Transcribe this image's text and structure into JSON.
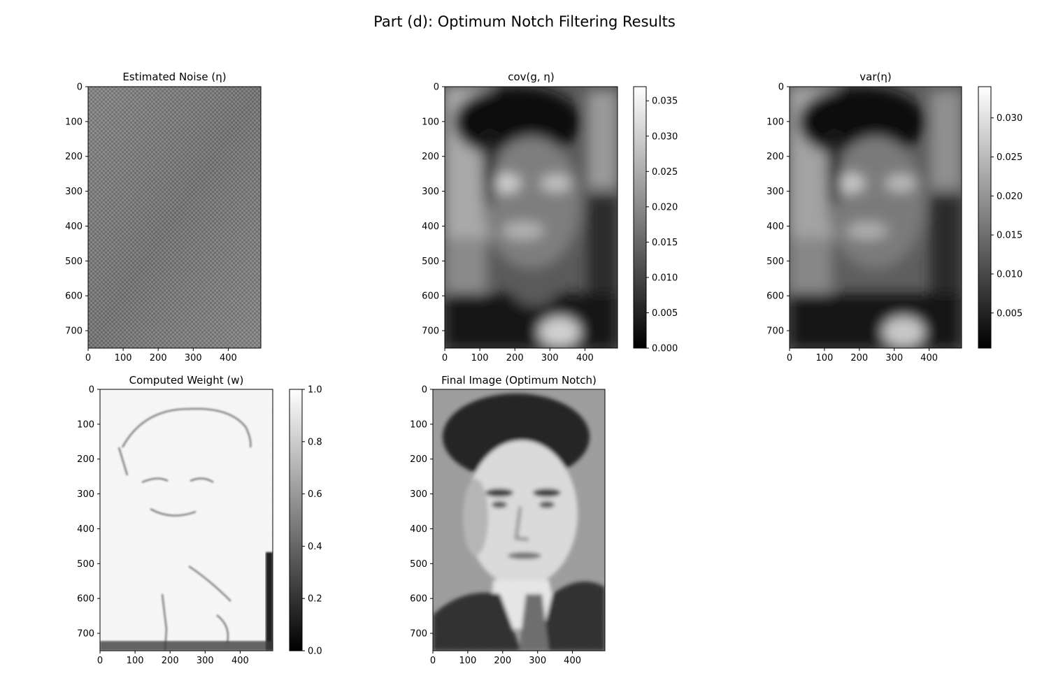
{
  "figure": {
    "suptitle": "Part (d): Optimum Notch Filtering Results"
  },
  "chart_data": [
    {
      "type": "heatmap",
      "id": "noise",
      "title": "Estimated Noise (η)",
      "colormap": "gray",
      "image_shape": [
        750,
        493
      ],
      "xlim": [
        0,
        493
      ],
      "ylim": [
        750,
        0
      ],
      "xticks": [
        0,
        100,
        200,
        300,
        400
      ],
      "yticks": [
        0,
        100,
        200,
        300,
        400,
        500,
        600,
        700
      ],
      "content": "fine periodic checkerboard noise pattern, mid-gray",
      "colorbar": null
    },
    {
      "type": "heatmap",
      "id": "cov",
      "title": "cov(g, η)",
      "colormap": "gray",
      "image_shape": [
        750,
        493
      ],
      "xlim": [
        0,
        493
      ],
      "ylim": [
        750,
        0
      ],
      "xticks": [
        0,
        100,
        200,
        300,
        400
      ],
      "yticks": [
        0,
        100,
        200,
        300,
        400,
        500,
        600,
        700
      ],
      "content": "blurred local covariance map of portrait",
      "colorbar": {
        "range": [
          0.0,
          0.037
        ],
        "ticks": [
          "0.000",
          "0.005",
          "0.010",
          "0.015",
          "0.020",
          "0.025",
          "0.030",
          "0.035"
        ]
      }
    },
    {
      "type": "heatmap",
      "id": "var",
      "title": "var(η)",
      "colormap": "gray",
      "image_shape": [
        750,
        493
      ],
      "xlim": [
        0,
        493
      ],
      "ylim": [
        750,
        0
      ],
      "xticks": [
        0,
        100,
        200,
        300,
        400
      ],
      "yticks": [
        0,
        100,
        200,
        300,
        400,
        500,
        600,
        700
      ],
      "content": "blurred local variance map of noise",
      "colorbar": {
        "range": [
          0.0005,
          0.034
        ],
        "ticks": [
          "0.005",
          "0.010",
          "0.015",
          "0.020",
          "0.025",
          "0.030"
        ]
      }
    },
    {
      "type": "heatmap",
      "id": "weight",
      "title": "Computed Weight (w)",
      "colormap": "gray",
      "image_shape": [
        750,
        493
      ],
      "xlim": [
        0,
        493
      ],
      "ylim": [
        750,
        0
      ],
      "xticks": [
        0,
        100,
        200,
        300,
        400
      ],
      "yticks": [
        0,
        100,
        200,
        300,
        400,
        500,
        600,
        700
      ],
      "content": "mostly white weight map with dark edge outlines",
      "colorbar": {
        "range": [
          0.0,
          1.0
        ],
        "ticks": [
          "0.0",
          "0.2",
          "0.4",
          "0.6",
          "0.8",
          "1.0"
        ]
      }
    },
    {
      "type": "heatmap",
      "id": "final",
      "title": "Final Image (Optimum Notch)",
      "colormap": "gray",
      "image_shape": [
        750,
        493
      ],
      "xlim": [
        0,
        493
      ],
      "ylim": [
        750,
        0
      ],
      "xticks": [
        0,
        100,
        200,
        300,
        400
      ],
      "yticks": [
        0,
        100,
        200,
        300,
        400,
        500,
        600,
        700
      ],
      "content": "restored grayscale portrait of a man in suit and tie",
      "colorbar": null
    }
  ]
}
